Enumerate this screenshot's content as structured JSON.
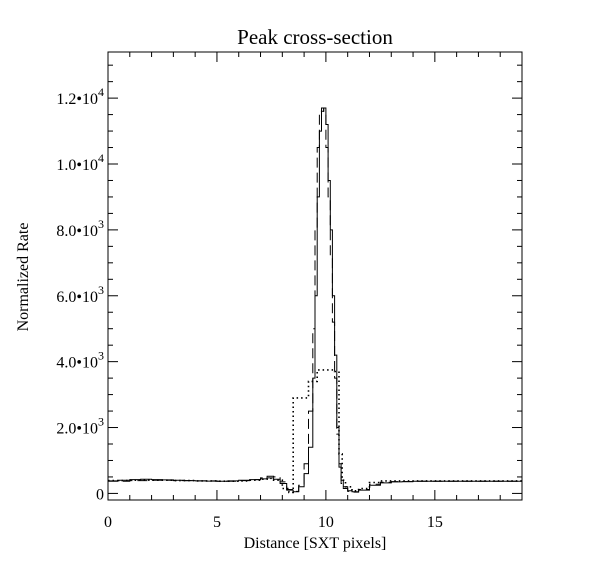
{
  "chart_data": {
    "type": "line",
    "title": "Peak cross-section",
    "xlabel": "Distance [SXT pixels]",
    "ylabel": "Normalized Rate",
    "xlim": [
      0,
      19
    ],
    "ylim": [
      -200,
      13400
    ],
    "x_ticks": [
      {
        "value": 0,
        "label": "0"
      },
      {
        "value": 5,
        "label": "5"
      },
      {
        "value": 10,
        "label": "10"
      },
      {
        "value": 15,
        "label": "15"
      }
    ],
    "y_ticks": [
      {
        "value": 0,
        "mantissa": "0",
        "exponent": ""
      },
      {
        "value": 2000,
        "mantissa": "2.0•10",
        "exponent": "3"
      },
      {
        "value": 4000,
        "mantissa": "4.0•10",
        "exponent": "3"
      },
      {
        "value": 6000,
        "mantissa": "6.0•10",
        "exponent": "3"
      },
      {
        "value": 8000,
        "mantissa": "8.0•10",
        "exponent": "3"
      },
      {
        "value": 10000,
        "mantissa": "1.0•10",
        "exponent": "4"
      },
      {
        "value": 12000,
        "mantissa": "1.2•10",
        "exponent": "4"
      }
    ],
    "series": [
      {
        "name": "solid",
        "style": "solid",
        "step": true,
        "x": [
          0,
          0.5,
          1,
          1.5,
          2,
          2.5,
          3,
          3.5,
          4,
          4.5,
          5,
          5.5,
          6,
          6.5,
          7,
          7.3,
          7.6,
          7.9,
          8.2,
          8.5,
          8.75,
          9.0,
          9.2,
          9.4,
          9.5,
          9.6,
          9.7,
          9.8,
          9.9,
          10.0,
          10.1,
          10.2,
          10.3,
          10.4,
          10.5,
          10.6,
          10.7,
          10.8,
          11.0,
          11.2,
          11.5,
          12,
          12.5,
          13,
          13.5,
          14,
          15,
          16,
          17,
          18,
          19
        ],
        "y": [
          380,
          400,
          420,
          430,
          420,
          410,
          400,
          390,
          380,
          375,
          370,
          380,
          400,
          420,
          440,
          470,
          430,
          300,
          100,
          50,
          200,
          600,
          1400,
          3500,
          6000,
          9000,
          11000,
          11600,
          11700,
          11200,
          9500,
          8000,
          6000,
          4200,
          2000,
          900,
          400,
          200,
          80,
          50,
          100,
          250,
          320,
          350,
          360,
          370,
          370,
          370,
          370,
          370,
          370
        ]
      },
      {
        "name": "dashed",
        "style": "dashed",
        "step": true,
        "x": [
          0,
          1,
          2,
          3,
          4,
          5,
          6,
          6.5,
          7,
          7.3,
          7.6,
          7.9,
          8.2,
          8.5,
          8.75,
          9.0,
          9.2,
          9.4,
          9.5,
          9.6,
          9.7,
          9.8,
          9.9,
          10.0,
          10.1,
          10.2,
          10.3,
          10.4,
          10.5,
          10.6,
          10.7,
          10.8,
          11.0,
          11.2,
          11.5,
          12,
          12.5,
          13,
          14,
          15,
          16,
          17,
          18,
          19
        ],
        "y": [
          370,
          390,
          400,
          390,
          380,
          370,
          390,
          420,
          470,
          520,
          500,
          350,
          120,
          60,
          250,
          900,
          2500,
          5000,
          8000,
          10500,
          11600,
          11700,
          11500,
          10500,
          9000,
          7200,
          5200,
          3500,
          1800,
          800,
          300,
          150,
          60,
          40,
          120,
          280,
          340,
          360,
          370,
          370,
          370,
          370,
          370,
          370
        ]
      },
      {
        "name": "dotted",
        "style": "dotted",
        "step": true,
        "x": [
          0,
          1,
          2,
          3,
          4,
          5,
          6,
          6.5,
          7,
          7.3,
          7.6,
          8.0,
          8.3,
          8.5,
          9.0,
          9.2,
          9.6,
          10.0,
          10.4,
          10.6,
          10.75,
          10.9,
          11.2,
          11.5,
          12,
          12.5,
          13,
          14,
          15,
          16,
          17,
          18,
          19
        ],
        "y": [
          390,
          400,
          400,
          390,
          380,
          370,
          380,
          400,
          430,
          460,
          400,
          150,
          30,
          2900,
          2900,
          3400,
          3750,
          3750,
          3700,
          1200,
          400,
          200,
          80,
          150,
          330,
          380,
          380,
          380,
          380,
          380,
          380,
          380,
          380
        ]
      }
    ]
  }
}
